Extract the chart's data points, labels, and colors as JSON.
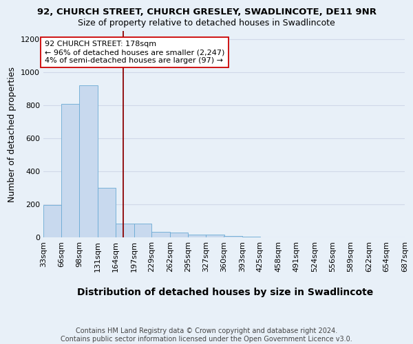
{
  "title1": "92, CHURCH STREET, CHURCH GRESLEY, SWADLINCOTE, DE11 9NR",
  "title2": "Size of property relative to detached houses in Swadlincote",
  "xlabel": "Distribution of detached houses by size in Swadlincote",
  "ylabel": "Number of detached properties",
  "footnote": "Contains HM Land Registry data © Crown copyright and database right 2024.\nContains public sector information licensed under the Open Government Licence v3.0.",
  "bin_edges": [
    33,
    66,
    98,
    131,
    164,
    197,
    229,
    262,
    295,
    327,
    360,
    393,
    425,
    458,
    491,
    524,
    556,
    589,
    622,
    654,
    687
  ],
  "bar_heights": [
    195,
    810,
    920,
    300,
    85,
    85,
    35,
    30,
    15,
    15,
    10,
    5,
    2,
    2,
    2,
    2,
    2,
    1,
    1,
    1
  ],
  "bar_color": "#c8d9ee",
  "bar_edge_color": "#6aaad4",
  "vline_x": 178,
  "vline_color": "#8b0000",
  "annotation_text": "92 CHURCH STREET: 178sqm\n← 96% of detached houses are smaller (2,247)\n4% of semi-detached houses are larger (97) →",
  "annotation_box_color": "#ffffff",
  "annotation_box_edge_color": "#cc0000",
  "ylim": [
    0,
    1250
  ],
  "yticks": [
    0,
    200,
    400,
    600,
    800,
    1000,
    1200
  ],
  "background_color": "#e8f0f8",
  "grid_color": "#d0d8e8",
  "title1_fontsize": 9.5,
  "title2_fontsize": 9,
  "xlabel_fontsize": 10,
  "ylabel_fontsize": 9,
  "tick_fontsize": 8,
  "annotation_fontsize": 8,
  "footnote_fontsize": 7
}
